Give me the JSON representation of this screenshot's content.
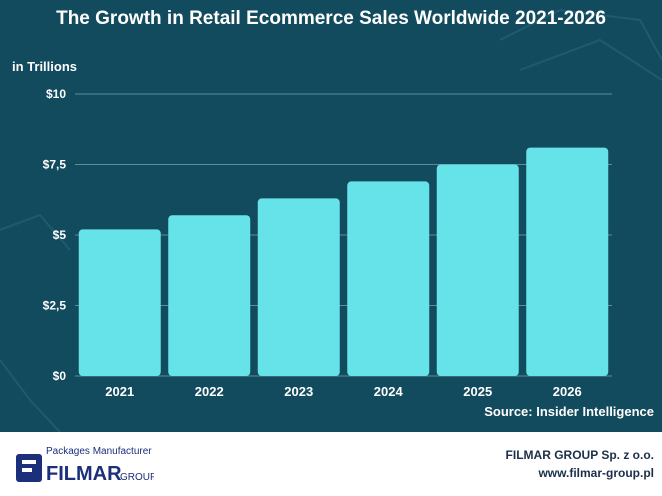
{
  "chart_data": {
    "type": "bar",
    "title": "The Growth in Retail Ecommerce Sales Worldwide 2021-2026",
    "ylabel": "in Trillions",
    "categories": [
      "2021",
      "2022",
      "2023",
      "2024",
      "2025",
      "2026"
    ],
    "values": [
      5.2,
      5.7,
      6.3,
      6.9,
      7.5,
      8.1
    ],
    "ylim": [
      0,
      10
    ],
    "yticks": [
      0,
      2.5,
      5,
      7.5,
      10
    ],
    "ytick_labels": [
      "$0",
      "$2,5",
      "$5",
      "$7,5",
      "$10"
    ],
    "grid": true,
    "bar_color": "#66e3e8",
    "background_color": "#124a5e",
    "source": "Source: Insider Intelligence"
  },
  "footer": {
    "logo_tagline": "Packages Manufacturer",
    "logo_brand": "FILMAR",
    "logo_group": "GROUP",
    "company_name": "FILMAR GROUP Sp. z o.o.",
    "website": "www.filmar-group.pl"
  }
}
